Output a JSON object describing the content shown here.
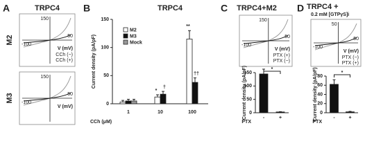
{
  "figure": {
    "letters": [
      "A",
      "B",
      "C",
      "D"
    ],
    "panel_a": {
      "title": "TRPC4",
      "rows": [
        "M2",
        "M3"
      ]
    },
    "insets": [
      {
        "labels": [
          "150",
          "-100",
          "50",
          "V (mV)"
        ],
        "legend": [
          "CCh (−)",
          "CCh (+)"
        ]
      },
      {
        "labels": [
          "150",
          "-100",
          "50",
          "V (mV)"
        ],
        "legend": []
      },
      {
        "labels": [
          "150",
          "-100",
          "50",
          "V (mV)"
        ],
        "legend": [
          "PTX (+)",
          "PTX (−)"
        ]
      },
      {
        "labels": [
          "50",
          "-100",
          "50",
          "V (mV)"
        ],
        "legend": [
          "PTX (−)",
          "PTX (+)"
        ]
      }
    ]
  },
  "chart_data": [
    {
      "type": "bar",
      "title": "TRPC4",
      "ylabel": "Current density (pA/pF)",
      "xlabel": "CCh (μM)",
      "categories": [
        "1",
        "10",
        "100"
      ],
      "series": [
        {
          "name": "M2",
          "color": "#ffffff",
          "values": [
            3,
            12,
            115
          ],
          "errors": [
            3,
            4,
            15
          ]
        },
        {
          "name": "M3",
          "color": "#111111",
          "values": [
            5,
            17,
            38
          ],
          "errors": [
            3,
            5,
            8
          ]
        },
        {
          "name": "Mock",
          "color": "#999999",
          "values": [
            5,
            null,
            null
          ],
          "errors": [
            3,
            null,
            null
          ]
        }
      ],
      "ylim": [
        0,
        150
      ],
      "yticks": [
        0,
        50,
        100,
        150
      ],
      "annotations": [
        "*",
        "†",
        "**",
        "††"
      ]
    },
    {
      "type": "bar",
      "title": "TRPC4+M2",
      "ylabel": "Current density (pA/pF)",
      "xlabel": "PTX",
      "categories": [
        "-",
        "+"
      ],
      "values": [
        145,
        3
      ],
      "errors": [
        18,
        1
      ],
      "color": "#111111",
      "ylim": [
        0,
        150
      ],
      "yticks": [
        0,
        50,
        100,
        150
      ],
      "annotations": [
        "*"
      ]
    },
    {
      "type": "bar",
      "title": "TRPC4 +",
      "subtitle": "0.2 mM [GTPγS]i",
      "ylabel": "Current density (pA/pF)",
      "xlabel": "PTX",
      "categories": [
        "-",
        "+"
      ],
      "values": [
        62,
        2
      ],
      "errors": [
        10,
        1
      ],
      "color": "#111111",
      "ylim": [
        0,
        80
      ],
      "yticks": [
        0,
        20,
        40,
        60,
        80
      ],
      "annotations": [
        "*"
      ]
    }
  ]
}
